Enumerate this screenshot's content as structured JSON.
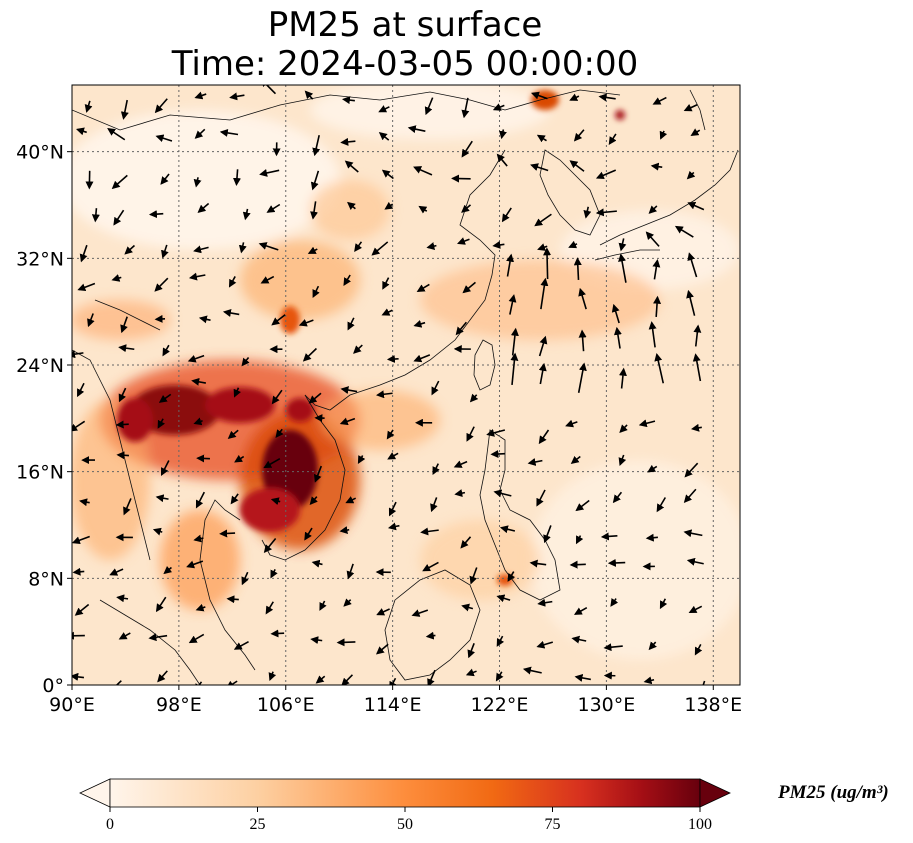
{
  "title": {
    "line1": "PM25 at surface",
    "line2": "Time: 2024-03-05 00:00:00"
  },
  "map": {
    "lon_range": [
      90,
      140
    ],
    "lat_range": [
      0,
      45
    ],
    "lon_ticks": [
      {
        "value": 90,
        "label": "90°E"
      },
      {
        "value": 98,
        "label": "98°E"
      },
      {
        "value": 106,
        "label": "106°E"
      },
      {
        "value": 114,
        "label": "114°E"
      },
      {
        "value": 122,
        "label": "122°E"
      },
      {
        "value": 130,
        "label": "130°E"
      },
      {
        "value": 138,
        "label": "138°E"
      }
    ],
    "lat_ticks": [
      {
        "value": 0,
        "label": "0°"
      },
      {
        "value": 8,
        "label": "8°N"
      },
      {
        "value": 16,
        "label": "16°N"
      },
      {
        "value": 24,
        "label": "24°N"
      },
      {
        "value": 32,
        "label": "32°N"
      },
      {
        "value": 40,
        "label": "40°N"
      }
    ],
    "gridlines": true
  },
  "colorbar": {
    "label": "PM25 (ug/m³)",
    "min": 0,
    "max": 100,
    "ticks": [
      "0",
      "25",
      "50",
      "75",
      "100"
    ],
    "extend": "both",
    "colors": [
      "#fff5eb",
      "#fdd0a2",
      "#fd8d3c",
      "#d94801",
      "#a50f15",
      "#67000d"
    ]
  }
}
